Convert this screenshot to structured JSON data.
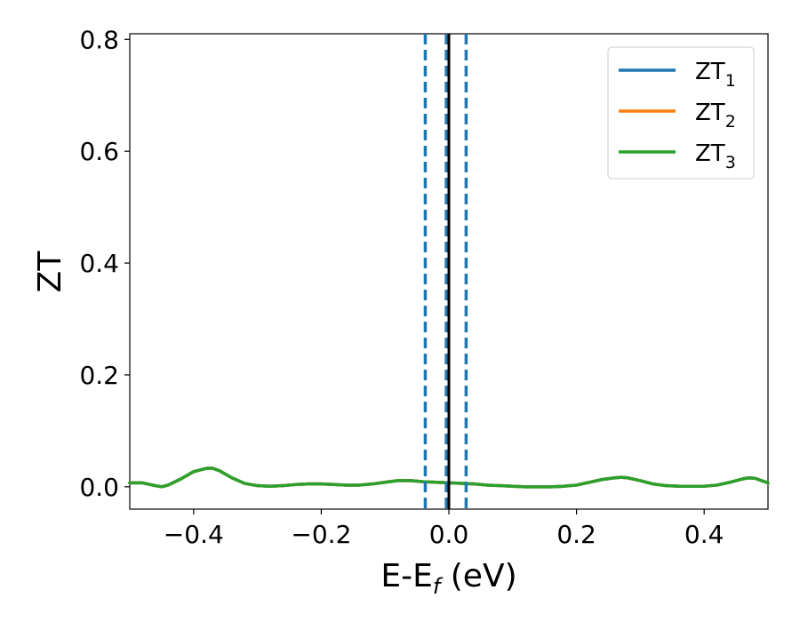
{
  "chart_data": {
    "type": "line",
    "title": "",
    "xlabel": "E-E",
    "xlabel_sub": "f",
    "xlabel_unit": " (eV)",
    "ylabel": "ZT",
    "xlim": [
      -0.5,
      0.5
    ],
    "ylim": [
      -0.04,
      0.81
    ],
    "xticks": [
      -0.4,
      -0.2,
      0.0,
      0.2,
      0.4
    ],
    "xtick_labels": [
      "−0.4",
      "−0.2",
      "0.0",
      "0.2",
      "0.4"
    ],
    "yticks": [
      0.0,
      0.2,
      0.4,
      0.6,
      0.8
    ],
    "ytick_labels": [
      "0.0",
      "0.2",
      "0.4",
      "0.6",
      "0.8"
    ],
    "grid": false,
    "legend_position": "top-right",
    "series": [
      {
        "name": "ZT",
        "name_sub": "1",
        "color": "#1f77b4",
        "x": [
          -0.5,
          -0.48,
          -0.46,
          -0.45,
          -0.44,
          -0.42,
          -0.4,
          -0.38,
          -0.37,
          -0.36,
          -0.34,
          -0.32,
          -0.3,
          -0.28,
          -0.26,
          -0.24,
          -0.22,
          -0.2,
          -0.18,
          -0.16,
          -0.14,
          -0.12,
          -0.1,
          -0.08,
          -0.06,
          -0.04,
          -0.02,
          0.0,
          0.02,
          0.04,
          0.06,
          0.08,
          0.1,
          0.12,
          0.14,
          0.16,
          0.18,
          0.2,
          0.22,
          0.24,
          0.26,
          0.27,
          0.28,
          0.3,
          0.32,
          0.34,
          0.36,
          0.38,
          0.4,
          0.42,
          0.44,
          0.46,
          0.47,
          0.48,
          0.5
        ],
        "y": [
          0.007,
          0.007,
          0.002,
          0.0,
          0.003,
          0.014,
          0.027,
          0.033,
          0.033,
          0.029,
          0.016,
          0.006,
          0.002,
          0.001,
          0.002,
          0.004,
          0.005,
          0.005,
          0.004,
          0.003,
          0.003,
          0.005,
          0.008,
          0.011,
          0.011,
          0.009,
          0.008,
          0.007,
          0.006,
          0.005,
          0.003,
          0.002,
          0.001,
          0.0,
          0.0,
          0.0,
          0.001,
          0.003,
          0.008,
          0.013,
          0.016,
          0.017,
          0.016,
          0.011,
          0.005,
          0.002,
          0.001,
          0.001,
          0.001,
          0.003,
          0.008,
          0.014,
          0.016,
          0.015,
          0.007
        ]
      },
      {
        "name": "ZT",
        "name_sub": "2",
        "color": "#ff7f0e",
        "x": [
          -0.5,
          -0.48,
          -0.46,
          -0.45,
          -0.44,
          -0.42,
          -0.4,
          -0.38,
          -0.37,
          -0.36,
          -0.34,
          -0.32,
          -0.3,
          -0.28,
          -0.26,
          -0.24,
          -0.22,
          -0.2,
          -0.18,
          -0.16,
          -0.14,
          -0.12,
          -0.1,
          -0.08,
          -0.06,
          -0.04,
          -0.02,
          0.0,
          0.02,
          0.04,
          0.06,
          0.08,
          0.1,
          0.12,
          0.14,
          0.16,
          0.18,
          0.2,
          0.22,
          0.24,
          0.26,
          0.27,
          0.28,
          0.3,
          0.32,
          0.34,
          0.36,
          0.38,
          0.4,
          0.42,
          0.44,
          0.46,
          0.47,
          0.48,
          0.5
        ],
        "y": [
          0.007,
          0.007,
          0.002,
          0.0,
          0.003,
          0.014,
          0.027,
          0.033,
          0.033,
          0.029,
          0.016,
          0.006,
          0.002,
          0.001,
          0.002,
          0.004,
          0.005,
          0.005,
          0.004,
          0.003,
          0.003,
          0.005,
          0.008,
          0.011,
          0.011,
          0.009,
          0.008,
          0.007,
          0.006,
          0.005,
          0.003,
          0.002,
          0.001,
          0.0,
          0.0,
          0.0,
          0.001,
          0.003,
          0.008,
          0.013,
          0.016,
          0.017,
          0.016,
          0.011,
          0.005,
          0.002,
          0.001,
          0.001,
          0.001,
          0.003,
          0.008,
          0.014,
          0.016,
          0.015,
          0.007
        ]
      },
      {
        "name": "ZT",
        "name_sub": "3",
        "color": "#2ca02c",
        "x": [
          -0.5,
          -0.48,
          -0.46,
          -0.45,
          -0.44,
          -0.42,
          -0.4,
          -0.38,
          -0.37,
          -0.36,
          -0.34,
          -0.32,
          -0.3,
          -0.28,
          -0.26,
          -0.24,
          -0.22,
          -0.2,
          -0.18,
          -0.16,
          -0.14,
          -0.12,
          -0.1,
          -0.08,
          -0.06,
          -0.04,
          -0.02,
          0.0,
          0.02,
          0.04,
          0.06,
          0.08,
          0.1,
          0.12,
          0.14,
          0.16,
          0.18,
          0.2,
          0.22,
          0.24,
          0.26,
          0.27,
          0.28,
          0.3,
          0.32,
          0.34,
          0.36,
          0.38,
          0.4,
          0.42,
          0.44,
          0.46,
          0.47,
          0.48,
          0.5
        ],
        "y": [
          0.007,
          0.007,
          0.002,
          0.0,
          0.003,
          0.014,
          0.027,
          0.033,
          0.033,
          0.029,
          0.016,
          0.006,
          0.002,
          0.001,
          0.002,
          0.004,
          0.005,
          0.005,
          0.004,
          0.003,
          0.003,
          0.005,
          0.008,
          0.011,
          0.011,
          0.009,
          0.008,
          0.007,
          0.006,
          0.005,
          0.003,
          0.002,
          0.001,
          0.0,
          0.0,
          0.0,
          0.001,
          0.003,
          0.008,
          0.013,
          0.016,
          0.017,
          0.016,
          0.011,
          0.005,
          0.002,
          0.001,
          0.001,
          0.001,
          0.003,
          0.008,
          0.014,
          0.016,
          0.015,
          0.007
        ]
      }
    ],
    "vertical_lines": [
      {
        "x": -0.037,
        "style": "dashed",
        "color": "#1f77b4"
      },
      {
        "x": -0.004,
        "style": "dashed",
        "color": "#1f77b4"
      },
      {
        "x": 0.027,
        "style": "dashed",
        "color": "#1f77b4"
      },
      {
        "x": 0.0,
        "style": "solid",
        "color": "#000000"
      }
    ]
  }
}
